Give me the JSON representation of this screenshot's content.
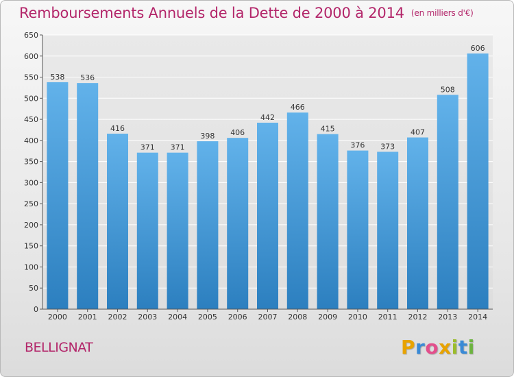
{
  "header": {
    "title": "Remboursements Annuels de la Dette de 2000 à 2014",
    "unit": "(en milliers d'€)"
  },
  "footer": {
    "commune": "BELLIGNAT",
    "logo_letters": [
      "P",
      "r",
      "o",
      "x",
      "i",
      "t",
      "i"
    ],
    "logo_colors": [
      "#e8a300",
      "#3a8ad6",
      "#e34f8c",
      "#e8a300",
      "#9bbc2b",
      "#3a8ad6",
      "#6cb33f"
    ]
  },
  "colors": {
    "bar_top": "#62b2ea",
    "bar_bottom": "#2c7fbf",
    "grid": "#ffffff",
    "axis": "#555555",
    "title": "#b3266a"
  },
  "chart_data": {
    "type": "bar",
    "title": "Remboursements Annuels de la Dette de 2000 à 2014",
    "xlabel": "",
    "ylabel": "",
    "ylim": [
      0,
      650
    ],
    "yticks": [
      0,
      50,
      100,
      150,
      200,
      250,
      300,
      350,
      400,
      450,
      500,
      550,
      600,
      650
    ],
    "grid": true,
    "categories": [
      "2000",
      "2001",
      "2002",
      "2003",
      "2004",
      "2005",
      "2006",
      "2007",
      "2008",
      "2009",
      "2010",
      "2011",
      "2012",
      "2013",
      "2014"
    ],
    "values": [
      538,
      536,
      416,
      371,
      371,
      398,
      406,
      442,
      466,
      415,
      376,
      373,
      407,
      508,
      606
    ]
  }
}
